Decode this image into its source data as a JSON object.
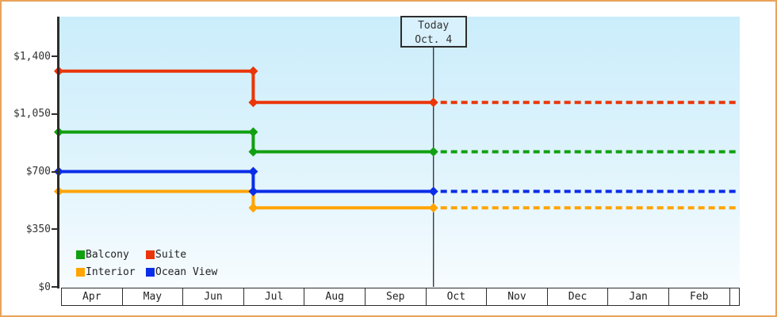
{
  "frame": {
    "border_color": "#e9a35b",
    "plot_background_top": "#cbedfb",
    "plot_background_bottom": "#f7fcff"
  },
  "chart_data": {
    "type": "line",
    "title": "",
    "xlabel": "",
    "ylabel": "",
    "ylim": [
      0,
      1400
    ],
    "grid": false,
    "legend_position": "bottom-left",
    "y_ticks": [
      {
        "value": 0,
        "label": "$0"
      },
      {
        "value": 350,
        "label": "$350"
      },
      {
        "value": 700,
        "label": "$700"
      },
      {
        "value": 1050,
        "label": "$1,050"
      },
      {
        "value": 1400,
        "label": "$1,400"
      }
    ],
    "categories": [
      "Apr",
      "May",
      "Jun",
      "Jul",
      "Aug",
      "Sep",
      "Oct",
      "Nov",
      "Dec",
      "Jan",
      "Feb"
    ],
    "today": {
      "line1": "Today",
      "line2": "Oct. 4",
      "month": "Oct",
      "day": 4
    },
    "series": [
      {
        "name": "Suite",
        "color": "#ea3508",
        "points": [
          {
            "month": "Apr",
            "day": 1,
            "value": 1310
          },
          {
            "month": "Jul",
            "day": 5,
            "value": 1310
          },
          {
            "month": "Jul",
            "day": 5,
            "value": 1120
          },
          {
            "month": "Oct",
            "day": 4,
            "value": 1120
          }
        ],
        "projection": {
          "style": "dotted",
          "value": 1120
        }
      },
      {
        "name": "Balcony",
        "color": "#11a011",
        "points": [
          {
            "month": "Apr",
            "day": 1,
            "value": 940
          },
          {
            "month": "Jul",
            "day": 5,
            "value": 940
          },
          {
            "month": "Jul",
            "day": 5,
            "value": 820
          },
          {
            "month": "Oct",
            "day": 4,
            "value": 820
          }
        ],
        "projection": {
          "style": "dotted",
          "value": 820
        }
      },
      {
        "name": "Interior",
        "color": "#ffa403",
        "points": [
          {
            "month": "Apr",
            "day": 1,
            "value": 580
          },
          {
            "month": "Jul",
            "day": 5,
            "value": 580
          },
          {
            "month": "Jul",
            "day": 5,
            "value": 480
          },
          {
            "month": "Oct",
            "day": 4,
            "value": 480
          }
        ],
        "projection": {
          "style": "dotted",
          "value": 480
        }
      },
      {
        "name": "Ocean View",
        "color": "#0a2de8",
        "points": [
          {
            "month": "Apr",
            "day": 1,
            "value": 700
          },
          {
            "month": "Jul",
            "day": 5,
            "value": 700
          },
          {
            "month": "Jul",
            "day": 5,
            "value": 580
          },
          {
            "month": "Oct",
            "day": 4,
            "value": 580
          }
        ],
        "projection": {
          "style": "dotted",
          "value": 580
        }
      }
    ],
    "legend": {
      "items": [
        {
          "label": "Balcony",
          "color": "#11a011"
        },
        {
          "label": "Suite",
          "color": "#ea3508"
        },
        {
          "label": "Interior",
          "color": "#ffa403"
        },
        {
          "label": "Ocean View",
          "color": "#0a2de8"
        }
      ]
    }
  }
}
